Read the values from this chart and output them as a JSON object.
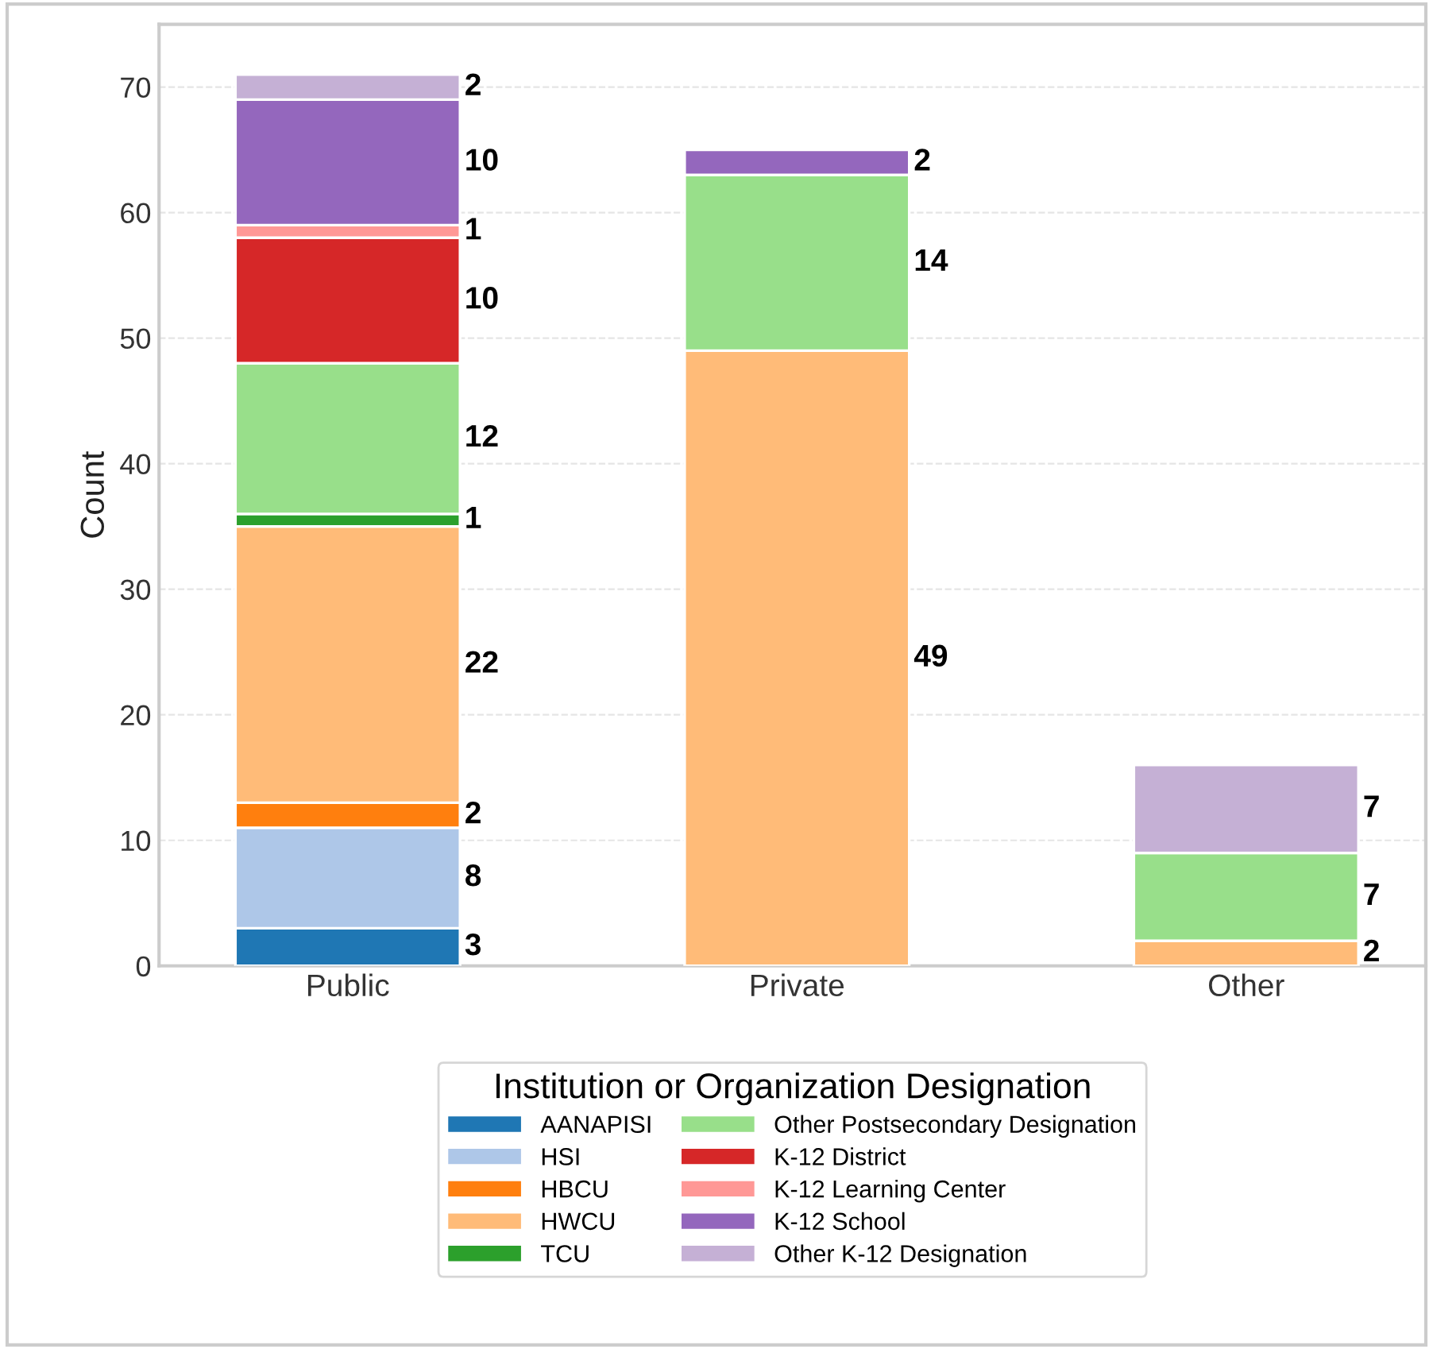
{
  "chart_data": {
    "type": "bar",
    "stacked": true,
    "ylabel": "Count",
    "legend_title": "Institution or Organization Designation",
    "legend": "bottom",
    "grid": "y",
    "data_labels": true,
    "categories": [
      "Public",
      "Private",
      "Other"
    ],
    "ylim": [
      0,
      75
    ],
    "yticks": [
      0,
      10,
      20,
      30,
      40,
      50,
      60,
      70
    ],
    "series": [
      {
        "name": "AANAPISI",
        "color": "#1f77b4",
        "values": [
          3,
          null,
          null
        ]
      },
      {
        "name": "HSI",
        "color": "#aec7e8",
        "values": [
          8,
          null,
          null
        ]
      },
      {
        "name": "HBCU",
        "color": "#ff7f0e",
        "values": [
          2,
          null,
          null
        ]
      },
      {
        "name": "HWCU",
        "color": "#ffbb78",
        "values": [
          22,
          49,
          2
        ]
      },
      {
        "name": "TCU",
        "color": "#2ca02c",
        "values": [
          1,
          null,
          null
        ]
      },
      {
        "name": "Other Postsecondary Designation",
        "color": "#98df8a",
        "values": [
          12,
          14,
          7
        ]
      },
      {
        "name": "K-12 District",
        "color": "#d62728",
        "values": [
          10,
          null,
          null
        ]
      },
      {
        "name": "K-12 Learning Center",
        "color": "#ff9896",
        "values": [
          1,
          null,
          null
        ]
      },
      {
        "name": "K-12 School",
        "color": "#9467bd",
        "values": [
          10,
          2,
          null
        ]
      },
      {
        "name": "Other K-12 Designation",
        "color": "#c5b0d5",
        "values": [
          2,
          null,
          7
        ]
      }
    ]
  }
}
